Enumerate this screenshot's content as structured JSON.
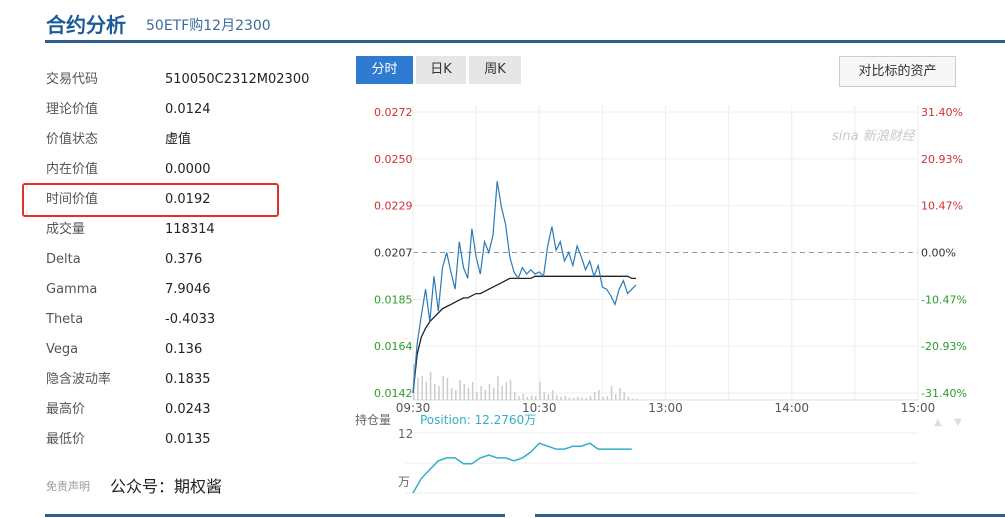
{
  "header": {
    "title": "合约分析",
    "subtitle": "50ETF购12月2300"
  },
  "details": [
    {
      "label": "交易代码",
      "value": "510050C2312M02300"
    },
    {
      "label": "理论价值",
      "value": "0.0124"
    },
    {
      "label": "价值状态",
      "value": "虚值"
    },
    {
      "label": "内在价值",
      "value": "0.0000"
    },
    {
      "label": "时间价值",
      "value": "0.0192"
    },
    {
      "label": "成交量",
      "value": "118314"
    },
    {
      "label": "Delta",
      "value": "0.376"
    },
    {
      "label": "Gamma",
      "value": "7.9046"
    },
    {
      "label": "Theta",
      "value": "-0.4033"
    },
    {
      "label": "Vega",
      "value": "0.136"
    },
    {
      "label": "隐含波动率",
      "value": "0.1835"
    },
    {
      "label": "最高价",
      "value": "0.0243"
    },
    {
      "label": "最低价",
      "value": "0.0135"
    }
  ],
  "footer": {
    "disclaimer": "免责声明",
    "wechat": "公众号：期权酱"
  },
  "tabs": [
    {
      "label": "分时",
      "active": true
    },
    {
      "label": "日K"
    },
    {
      "label": "周K"
    }
  ],
  "compare_button": "对比标的资产",
  "watermark": "sina新浪财经",
  "colors": {
    "accent": "#2f7bd1",
    "up": "#d03030",
    "down": "#2a9d2a",
    "price_line": "#2a7ab8",
    "avg_line": "#222222",
    "position_line": "#30b0c8",
    "highlight": "#e03030"
  },
  "chart_data": [
    {
      "type": "line",
      "title": "",
      "ylim": [
        0.0142,
        0.0272
      ],
      "prev_close": 0.0207,
      "y_ticks_left": [
        "0.0272",
        "0.0250",
        "0.0229",
        "0.0207",
        "0.0185",
        "0.0164",
        "0.0142"
      ],
      "y_ticks_right": [
        "31.40%",
        "20.93%",
        "10.47%",
        "0.00%",
        "-10.47%",
        "-20.93%",
        "-31.40%"
      ],
      "x_ticks": [
        "09:30",
        "10:30",
        "13:00",
        "14:00",
        "15:00"
      ],
      "x_step_minutes": 2,
      "series": [
        {
          "key": "price",
          "values": [
            0.0142,
            0.0165,
            0.0178,
            0.019,
            0.0175,
            0.0196,
            0.018,
            0.02,
            0.0207,
            0.0198,
            0.019,
            0.0212,
            0.02,
            0.0195,
            0.0218,
            0.0205,
            0.0197,
            0.0212,
            0.0207,
            0.0215,
            0.024,
            0.0228,
            0.022,
            0.0205,
            0.0198,
            0.0195,
            0.02,
            0.0197,
            0.0199,
            0.0197,
            0.0198,
            0.0196,
            0.021,
            0.0219,
            0.0208,
            0.0212,
            0.0203,
            0.0207,
            0.0201,
            0.021,
            0.0205,
            0.0199,
            0.0203,
            0.0196,
            0.0201,
            0.0191,
            0.019,
            0.0187,
            0.0183,
            0.019,
            0.0194,
            0.0188,
            0.019,
            0.0192
          ]
        },
        {
          "key": "average",
          "values": [
            0.0142,
            0.016,
            0.0168,
            0.0172,
            0.0175,
            0.0177,
            0.0179,
            0.0181,
            0.0182,
            0.0183,
            0.0184,
            0.0185,
            0.0186,
            0.0186,
            0.0187,
            0.0188,
            0.0188,
            0.0189,
            0.019,
            0.0191,
            0.0192,
            0.0193,
            0.0194,
            0.0195,
            0.0195,
            0.0195,
            0.0195,
            0.0195,
            0.0195,
            0.0196,
            0.0196,
            0.0196,
            0.0196,
            0.0196,
            0.0196,
            0.0196,
            0.0196,
            0.0196,
            0.0196,
            0.0196,
            0.0196,
            0.0196,
            0.0196,
            0.0196,
            0.0196,
            0.0196,
            0.0196,
            0.0196,
            0.0196,
            0.0196,
            0.0196,
            0.0196,
            0.0195,
            0.0195
          ]
        }
      ],
      "volume": [
        90,
        55,
        60,
        45,
        70,
        40,
        35,
        60,
        55,
        30,
        25,
        50,
        40,
        30,
        45,
        20,
        35,
        25,
        40,
        30,
        60,
        35,
        45,
        50,
        20,
        10,
        15,
        8,
        12,
        10,
        45,
        20,
        15,
        25,
        12,
        8,
        10,
        6,
        5,
        8,
        6,
        5,
        10,
        20,
        25,
        8,
        10,
        35,
        15,
        30,
        20,
        8,
        4,
        3
      ]
    },
    {
      "type": "line",
      "label": "持仓量",
      "legend": "Position: 12.2760万",
      "y_top_label": "12",
      "unit_label": "万",
      "ylim": [
        10.3,
        12.35
      ],
      "x_step_minutes": 4,
      "values": [
        10.3,
        10.8,
        11.1,
        11.4,
        11.5,
        11.5,
        11.3,
        11.3,
        11.5,
        11.6,
        11.5,
        11.5,
        11.4,
        11.5,
        11.7,
        12.0,
        11.9,
        11.8,
        11.8,
        11.9,
        11.9,
        12.0,
        11.8,
        11.8,
        11.8,
        11.8,
        11.8
      ]
    }
  ]
}
